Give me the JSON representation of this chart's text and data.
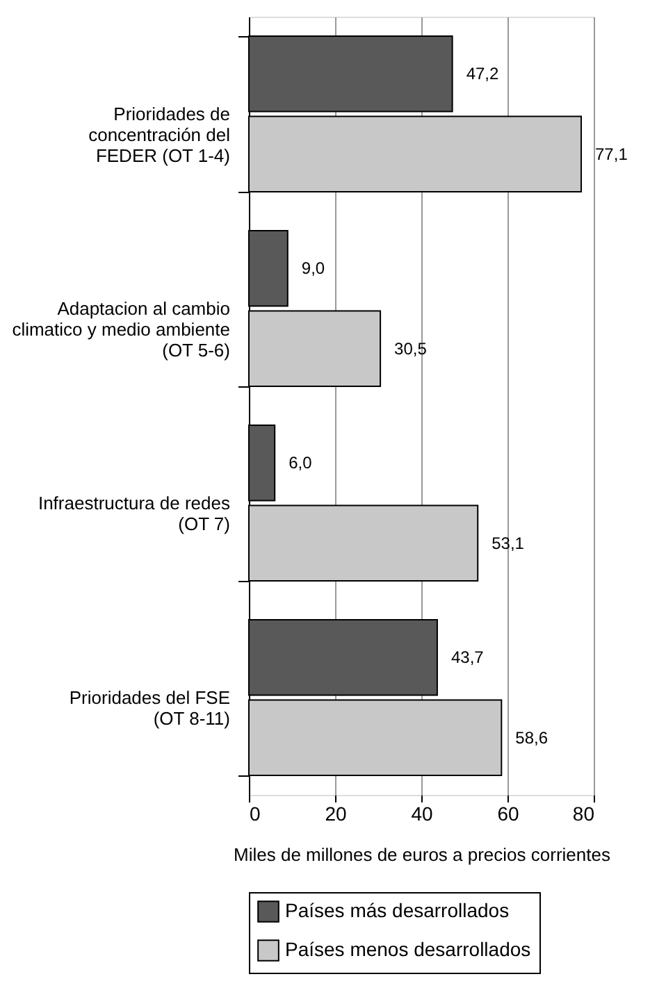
{
  "chart_data": {
    "type": "bar",
    "orientation": "horizontal",
    "categories": [
      "Prioridades de\nconcentración del\nFEDER (OT 1-4)",
      "Adaptacion al cambio\nclimatico y medio ambiente\n(OT 5-6)",
      "Infraestructura de redes\n(OT 7)",
      "Prioridades del FSE\n(OT 8-11)"
    ],
    "series": [
      {
        "name": "Países más desarrollados",
        "color": "#595959",
        "values": [
          47.2,
          9.0,
          6.0,
          43.7
        ],
        "value_labels": [
          "47,2",
          "9,0",
          "6,0",
          "43,7"
        ]
      },
      {
        "name": "Países menos desarrollados",
        "color": "#c8c8c8",
        "values": [
          77.1,
          30.5,
          53.1,
          58.6
        ],
        "value_labels": [
          "77,1",
          "30,5",
          "53,1",
          "58,6"
        ]
      }
    ],
    "xlabel": "Miles de millones de euros a precios corrientes",
    "xlim": [
      0,
      80
    ],
    "xticks": [
      0,
      20,
      40,
      60,
      80
    ],
    "grid": "x",
    "legend": "bottom"
  }
}
